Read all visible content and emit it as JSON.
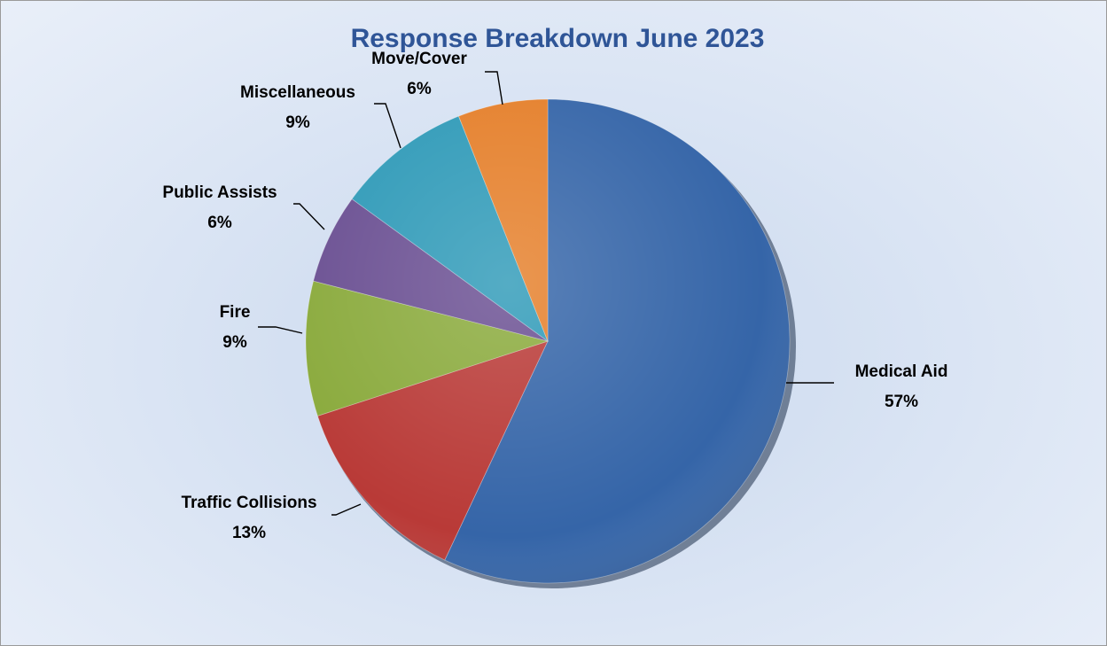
{
  "chart_data": {
    "type": "pie",
    "title": "Response Breakdown June 2023",
    "legend": "none",
    "slices": [
      {
        "label": "Medical Aid",
        "value": 57,
        "display": "57%",
        "color": "#3565a8"
      },
      {
        "label": "Traffic Collisions",
        "value": 13,
        "display": "13%",
        "color": "#b93a37"
      },
      {
        "label": "Fire",
        "value": 9,
        "display": "9%",
        "color": "#8aaa3c"
      },
      {
        "label": "Public Assists",
        "value": 6,
        "display": "6%",
        "color": "#6a4f92"
      },
      {
        "label": "Miscellaneous",
        "value": 9,
        "display": "9%",
        "color": "#2f9ab8"
      },
      {
        "label": "Move/Cover",
        "value": 6,
        "display": "6%",
        "color": "#e57f2a"
      }
    ]
  }
}
